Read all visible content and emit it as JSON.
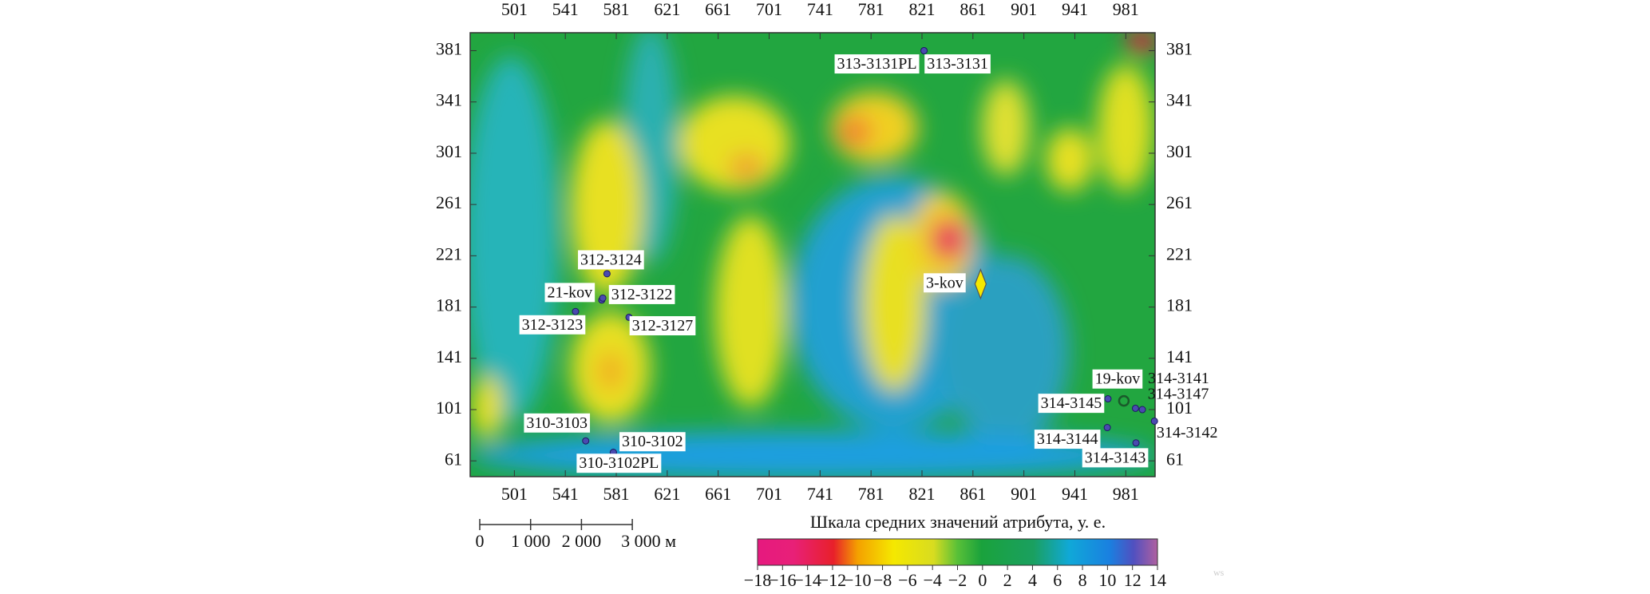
{
  "chart_data": {
    "type": "map",
    "xlim": [
      466.3,
      1004
    ],
    "ylim": [
      48.7,
      395
    ],
    "xticks": [
      501,
      541,
      581,
      621,
      661,
      701,
      741,
      781,
      821,
      861,
      901,
      941,
      981
    ],
    "yticks": [
      61,
      101,
      141,
      181,
      221,
      261,
      301,
      341,
      381
    ],
    "wells": [
      {
        "name": "313-3131PL",
        "x": 822.6,
        "y": 381
      },
      {
        "name": "313-3131",
        "x": 822.6,
        "y": 381
      },
      {
        "name": "312-3124",
        "x": 573.7,
        "y": 207
      },
      {
        "name": "21-kov",
        "x": 569.6,
        "y": 186.5
      },
      {
        "name": "312-3122",
        "x": 570.4,
        "y": 188
      },
      {
        "name": "312-3123",
        "x": 549,
        "y": 177.5
      },
      {
        "name": "312-3127",
        "x": 591,
        "y": 173
      },
      {
        "name": "310-3103",
        "x": 557,
        "y": 76.6
      },
      {
        "name": "310-3102",
        "x": 578.7,
        "y": 67.6
      },
      {
        "name": "310-3102PL",
        "x": 578.7,
        "y": 67.6
      },
      {
        "name": "3-kov",
        "x": 867,
        "y": 199
      },
      {
        "name": "19-kov",
        "x": 979.5,
        "y": 107.8
      },
      {
        "name": "314-3145",
        "x": 967,
        "y": 109.4
      },
      {
        "name": "314-3141",
        "x": 988.6,
        "y": 102
      },
      {
        "name": "314-3147",
        "x": 994,
        "y": 101
      },
      {
        "name": "314-3142",
        "x": 1003.5,
        "y": 92
      },
      {
        "name": "314-3144",
        "x": 966.5,
        "y": 87
      },
      {
        "name": "314-3143",
        "x": 989,
        "y": 75
      }
    ],
    "scale_bar": {
      "labels": [
        "0",
        "1 000",
        "2 000",
        "3 000 м"
      ]
    },
    "colorbar": {
      "title": "Шкала средних значений атрибута, у. е.",
      "lim": [
        -18,
        14
      ],
      "ticks": [
        {
          "value": -18,
          "label": "−18"
        },
        {
          "value": -16,
          "label": "−16"
        },
        {
          "value": -14,
          "label": "−14"
        },
        {
          "value": -12,
          "label": "−12"
        },
        {
          "value": -10,
          "label": "−10"
        },
        {
          "value": -8,
          "label": "−8"
        },
        {
          "value": -6,
          "label": "−6"
        },
        {
          "value": -4,
          "label": "−4"
        },
        {
          "value": -2,
          "label": "−2"
        },
        0,
        2,
        4,
        6,
        8,
        10,
        12,
        14
      ]
    }
  }
}
